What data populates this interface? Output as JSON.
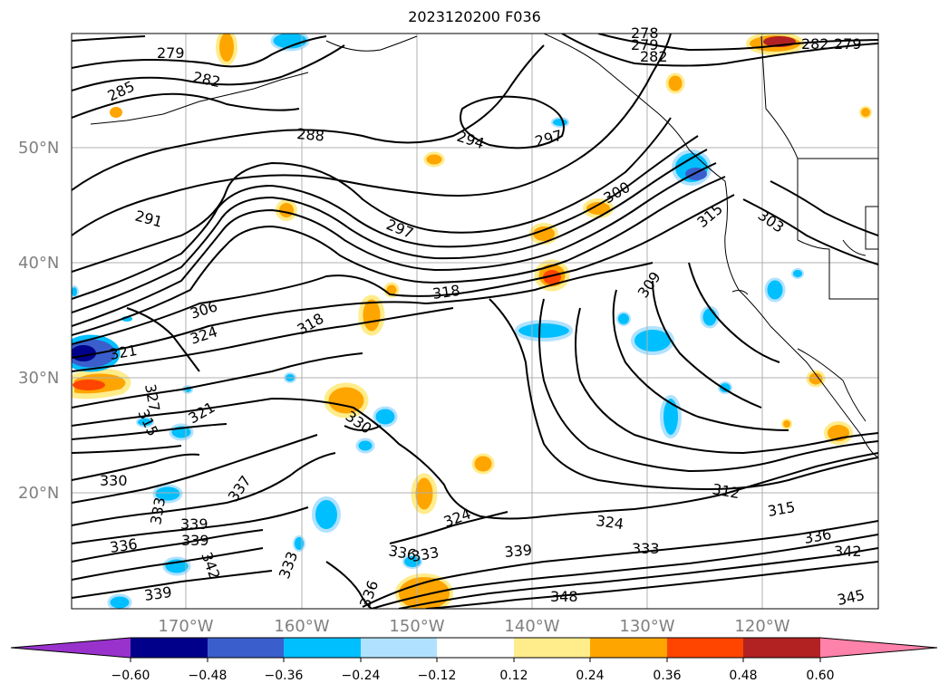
{
  "title": "2023120200 F036",
  "lat_labels": [
    "50°N",
    "40°N",
    "30°N",
    "20°N"
  ],
  "lon_labels": [
    "170°W",
    "160°W",
    "150°W",
    "140°W",
    "130°W",
    "120°W"
  ],
  "colorbar": {
    "ticks": [
      "−0.60",
      "−0.48",
      "−0.36",
      "−0.24",
      "−0.12",
      "0.12",
      "0.24",
      "0.36",
      "0.48",
      "0.60"
    ],
    "colors": [
      "#9932cc",
      "#00008b",
      "#3a5fcd",
      "#00bfff",
      "#b0e2ff",
      "#ffffff",
      "#ffec8b",
      "#ffa500",
      "#ff4500",
      "#b22222",
      "#ff82ab"
    ]
  },
  "contour_labels": [
    "279",
    "282",
    "285",
    "288",
    "294",
    "297",
    "291",
    "297",
    "300",
    "303",
    "315",
    "309",
    "318",
    "306",
    "324",
    "321",
    "327",
    "315",
    "321",
    "330",
    "330",
    "333",
    "337",
    "339",
    "339",
    "336",
    "342",
    "333",
    "339",
    "336",
    "333",
    "336",
    "324",
    "312",
    "315",
    "324",
    "333",
    "339",
    "336",
    "342",
    "348",
    "345",
    "279",
    "282",
    "279",
    "282",
    "278"
  ],
  "colors": {
    "grid": "#b0b0b0",
    "axis_text": "#808080",
    "contour": "#000000"
  }
}
